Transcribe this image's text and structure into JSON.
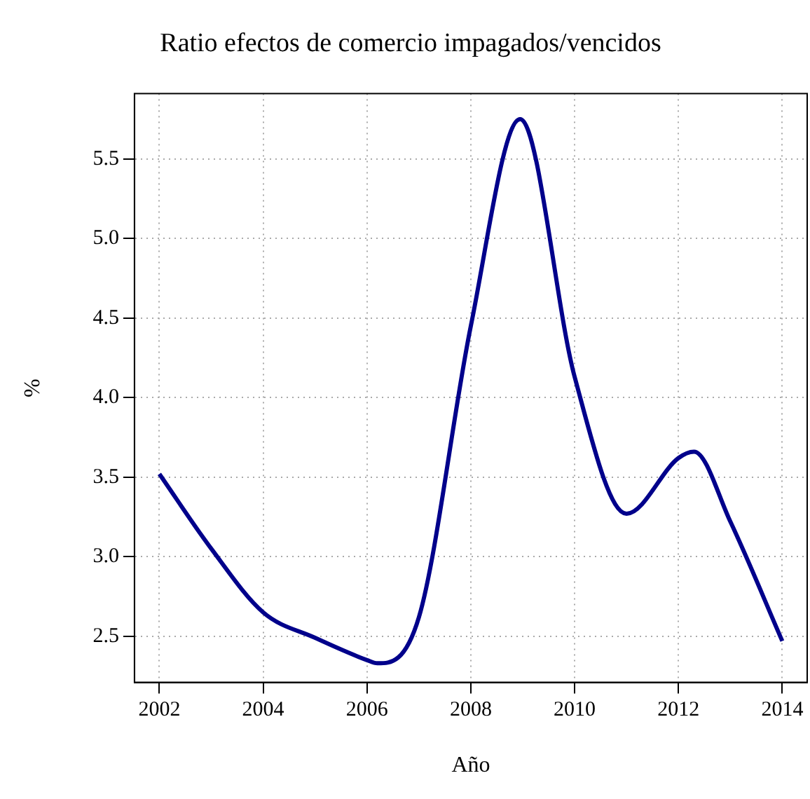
{
  "chart_data": {
    "type": "line",
    "title": "Ratio efectos de comercio impagados/vencidos",
    "xlabel": "Año",
    "ylabel": "%",
    "x": [
      2002,
      2003,
      2004,
      2005,
      2006,
      2006.2,
      2007,
      2008,
      2008.95,
      2010,
      2011,
      2012,
      2012.3,
      2013,
      2014
    ],
    "series": [
      {
        "color": "#00008b",
        "values": [
          3.52,
          3.05,
          2.65,
          2.49,
          2.35,
          2.33,
          2.62,
          4.45,
          5.75,
          4.13,
          3.27,
          3.62,
          3.66,
          3.22,
          2.47
        ]
      }
    ],
    "xlim": [
      2001.52,
      2014.48
    ],
    "xticks": [
      2002,
      2004,
      2006,
      2008,
      2010,
      2012,
      2014
    ],
    "ylim": [
      2.21,
      5.91
    ],
    "yticks": [
      {
        "value": 2.5,
        "label": "2.5"
      },
      {
        "value": 3,
        "label": "3.0"
      },
      {
        "value": 3.5,
        "label": "3.5"
      },
      {
        "value": 4,
        "label": "4.0"
      },
      {
        "value": 4.5,
        "label": "4.5"
      },
      {
        "value": 5,
        "label": "5.0"
      },
      {
        "value": 5.5,
        "label": "5.5"
      }
    ],
    "grid": true,
    "legend": false,
    "marker": "none",
    "line_style": "solid"
  }
}
